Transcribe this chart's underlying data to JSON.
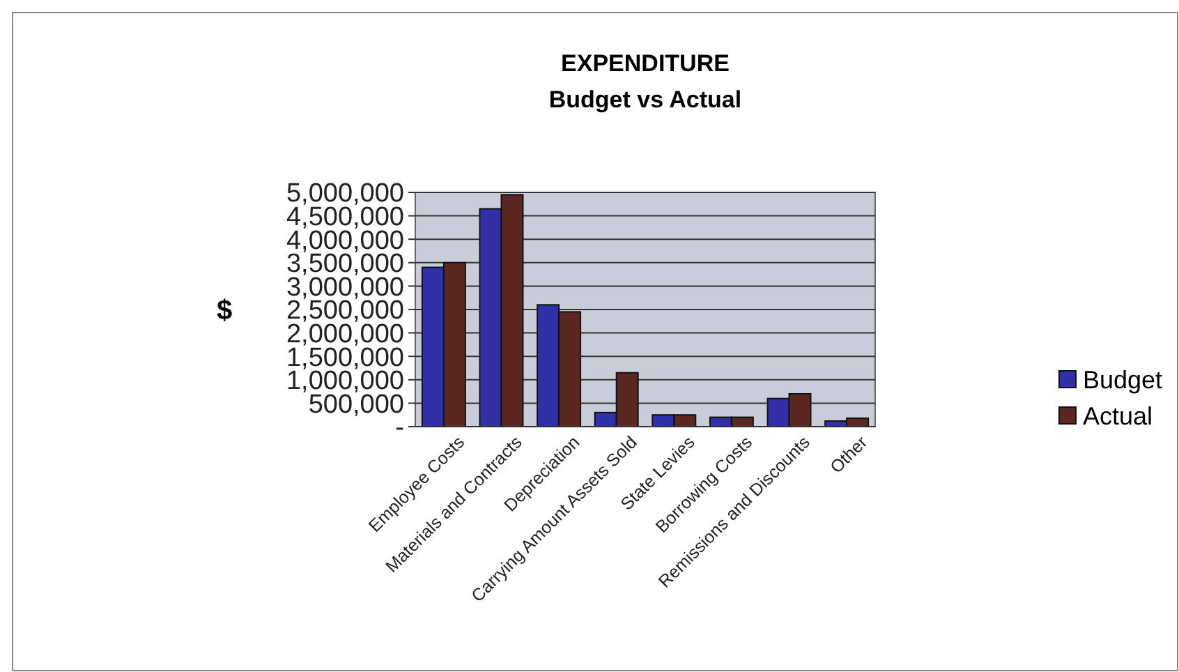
{
  "chart_data": {
    "type": "bar",
    "title": "EXPENDITURE",
    "subtitle": "Budget vs Actual",
    "ylabel": "$",
    "categories": [
      "Employee Costs",
      "Materials and Contracts",
      "Depreciation",
      "Carrying Amount Assets Sold",
      "State Levies",
      "Borrowing Costs",
      "Remissions and Discounts",
      "Other"
    ],
    "series": [
      {
        "name": "Budget",
        "color": "#3030a8",
        "values": [
          3400000,
          4650000,
          2600000,
          300000,
          250000,
          200000,
          600000,
          120000
        ]
      },
      {
        "name": "Actual",
        "color": "#5a2820",
        "values": [
          3500000,
          4950000,
          2450000,
          1150000,
          250000,
          200000,
          700000,
          180000
        ]
      }
    ],
    "ylim": [
      0,
      5000000
    ],
    "yticks": [
      {
        "value": 0,
        "label": "-"
      },
      {
        "value": 500000,
        "label": "500,000"
      },
      {
        "value": 1000000,
        "label": "1,000,000"
      },
      {
        "value": 1500000,
        "label": "1,500,000"
      },
      {
        "value": 2000000,
        "label": "2,000,000"
      },
      {
        "value": 2500000,
        "label": "2,500,000"
      },
      {
        "value": 3000000,
        "label": "3,000,000"
      },
      {
        "value": 3500000,
        "label": "3,500,000"
      },
      {
        "value": 4000000,
        "label": "4,000,000"
      },
      {
        "value": 4500000,
        "label": "4,500,000"
      },
      {
        "value": 5000000,
        "label": "5,000,000"
      }
    ],
    "grid": "y",
    "legend": "right"
  }
}
